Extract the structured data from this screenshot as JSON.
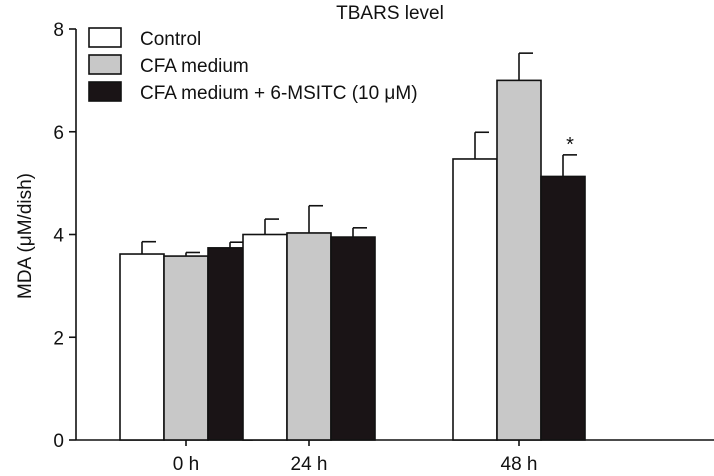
{
  "chart_data": {
    "type": "bar",
    "title": "TBARS level",
    "ylabel": "MDA (μM/dish)",
    "xlabel": "",
    "categories": [
      "0 h",
      "24 h",
      "48 h"
    ],
    "ylim": [
      0,
      8
    ],
    "yticks": [
      "0",
      "2",
      "4",
      "6",
      "8"
    ],
    "series": [
      {
        "name": "Control",
        "color": "#ffffff",
        "values": [
          3.62,
          4.0,
          5.47
        ],
        "errors": [
          0.24,
          0.3,
          0.52
        ]
      },
      {
        "name": "CFA medium",
        "color": "#c8c8c8",
        "values": [
          3.58,
          4.03,
          7.0
        ],
        "errors": [
          0.07,
          0.53,
          0.53
        ]
      },
      {
        "name": "CFA medium + 6-MSITC (10 μM)",
        "color": "#1a1416",
        "values": [
          3.74,
          3.95,
          5.13
        ],
        "errors": [
          0.11,
          0.18,
          0.42
        ]
      }
    ],
    "annotations": [
      {
        "text": "*",
        "category": "48 h",
        "series": "CFA medium + 6-MSITC (10 μM)"
      }
    ],
    "legend": "top-left",
    "grid": false
  }
}
